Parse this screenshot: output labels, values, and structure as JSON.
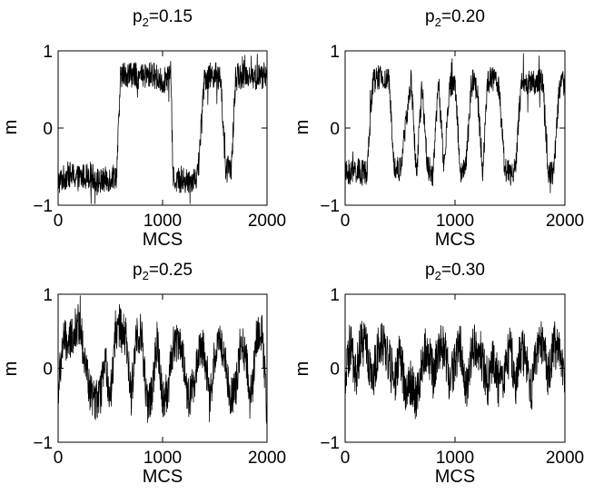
{
  "chart_data": [
    {
      "type": "line",
      "title_main": "p",
      "title_sub": "2",
      "title_value": "=0.15",
      "xlabel": "MCS",
      "ylabel": "m",
      "xlim": [
        0,
        2000
      ],
      "ylim": [
        -1,
        1
      ],
      "xticks": [
        "0",
        "1000",
        "2000"
      ],
      "yticks": [
        "-1",
        "0",
        "1"
      ],
      "grid": false,
      "line_color": "#000000",
      "series": [
        {
          "x": [
            0,
            100,
            200,
            300,
            400,
            500,
            560,
            600,
            700,
            800,
            900,
            1000,
            1080,
            1100,
            1200,
            1300,
            1340,
            1400,
            1500,
            1560,
            1600,
            1660,
            1700,
            1800,
            1900,
            2000
          ],
          "values": [
            -0.7,
            -0.6,
            -0.65,
            -0.6,
            -0.7,
            -0.65,
            -0.6,
            0.7,
            0.7,
            0.65,
            0.7,
            0.6,
            0.7,
            -0.65,
            -0.7,
            -0.65,
            -0.6,
            0.65,
            0.7,
            0.6,
            -0.55,
            -0.5,
            0.65,
            0.7,
            0.65,
            0.7
          ]
        }
      ]
    },
    {
      "type": "line",
      "title_main": "p",
      "title_sub": "2",
      "title_value": "=0.20",
      "xlabel": "MCS",
      "ylabel": "m",
      "xlim": [
        0,
        2000
      ],
      "ylim": [
        -1,
        1
      ],
      "xticks": [
        "0",
        "1000",
        "2000"
      ],
      "yticks": [
        "-1",
        "0",
        "1"
      ],
      "grid": false,
      "line_color": "#000000",
      "series": [
        {
          "x": [
            0,
            100,
            200,
            250,
            300,
            400,
            450,
            500,
            600,
            650,
            700,
            750,
            800,
            850,
            900,
            950,
            1000,
            1050,
            1100,
            1150,
            1200,
            1250,
            1300,
            1350,
            1400,
            1450,
            1500,
            1550,
            1600,
            1700,
            1800,
            1850,
            1900,
            1950,
            2000
          ],
          "values": [
            -0.6,
            -0.55,
            -0.6,
            0.6,
            0.65,
            0.6,
            -0.5,
            -0.55,
            0.6,
            -0.6,
            0.55,
            -0.5,
            -0.6,
            0.6,
            -0.55,
            0.55,
            0.6,
            -0.6,
            -0.5,
            0.6,
            0.55,
            -0.55,
            0.6,
            0.65,
            0.55,
            -0.5,
            -0.6,
            -0.55,
            0.55,
            0.6,
            0.6,
            -0.6,
            -0.55,
            0.55,
            0.6
          ]
        }
      ]
    },
    {
      "type": "line",
      "title_main": "p",
      "title_sub": "2",
      "title_value": "=0.25",
      "xlabel": "MCS",
      "ylabel": "m",
      "xlim": [
        0,
        2000
      ],
      "ylim": [
        -1,
        1
      ],
      "xticks": [
        "0",
        "1000",
        "2000"
      ],
      "yticks": [
        "-1",
        "0",
        "1"
      ],
      "grid": false,
      "line_color": "#000000",
      "series": [
        {
          "x": [
            0,
            50,
            100,
            150,
            200,
            250,
            300,
            350,
            400,
            450,
            500,
            550,
            600,
            650,
            700,
            750,
            800,
            850,
            900,
            950,
            1000,
            1050,
            1100,
            1150,
            1200,
            1250,
            1300,
            1350,
            1400,
            1450,
            1500,
            1550,
            1600,
            1650,
            1700,
            1750,
            1800,
            1850,
            1900,
            1950,
            2000
          ],
          "values": [
            -0.3,
            0.4,
            0.3,
            0.5,
            0.6,
            0.2,
            -0.3,
            -0.45,
            -0.4,
            0.1,
            -0.4,
            0.5,
            0.55,
            0.4,
            -0.4,
            0.5,
            0.45,
            -0.5,
            -0.3,
            0.4,
            -0.4,
            -0.3,
            0.3,
            0.4,
            0.1,
            -0.45,
            -0.2,
            0.3,
            0.25,
            -0.5,
            0.2,
            0.4,
            0.1,
            -0.4,
            -0.3,
            0.45,
            0.1,
            -0.4,
            0.4,
            0.5,
            -0.6
          ]
        }
      ]
    },
    {
      "type": "line",
      "title_main": "p",
      "title_sub": "2",
      "title_value": "=0.30",
      "xlabel": "MCS",
      "ylabel": "m",
      "xlim": [
        0,
        2000
      ],
      "ylim": [
        -1,
        1
      ],
      "xticks": [
        "0",
        "1000",
        "2000"
      ],
      "yticks": [
        "-1",
        "0",
        "1"
      ],
      "grid": false,
      "line_color": "#000000",
      "series": [
        {
          "x": [
            0,
            50,
            100,
            150,
            200,
            250,
            300,
            350,
            400,
            450,
            500,
            550,
            600,
            650,
            700,
            750,
            800,
            850,
            900,
            950,
            1000,
            1050,
            1100,
            1150,
            1200,
            1250,
            1300,
            1350,
            1400,
            1450,
            1500,
            1550,
            1600,
            1650,
            1700,
            1750,
            1800,
            1850,
            1900,
            1950,
            2000
          ],
          "values": [
            -0.2,
            0.3,
            -0.1,
            0.4,
            0.2,
            -0.2,
            0.3,
            0.35,
            0.1,
            -0.25,
            0.2,
            -0.3,
            -0.2,
            -0.45,
            0.1,
            0.3,
            -0.1,
            0.25,
            0.35,
            -0.2,
            0.1,
            0.3,
            -0.3,
            0.2,
            0.35,
            0.1,
            -0.2,
            0.2,
            -0.25,
            -0.1,
            0.3,
            -0.2,
            0.25,
            0.1,
            -0.3,
            0.3,
            0.35,
            -0.1,
            0.3,
            0.2,
            -0.3
          ]
        }
      ]
    }
  ]
}
